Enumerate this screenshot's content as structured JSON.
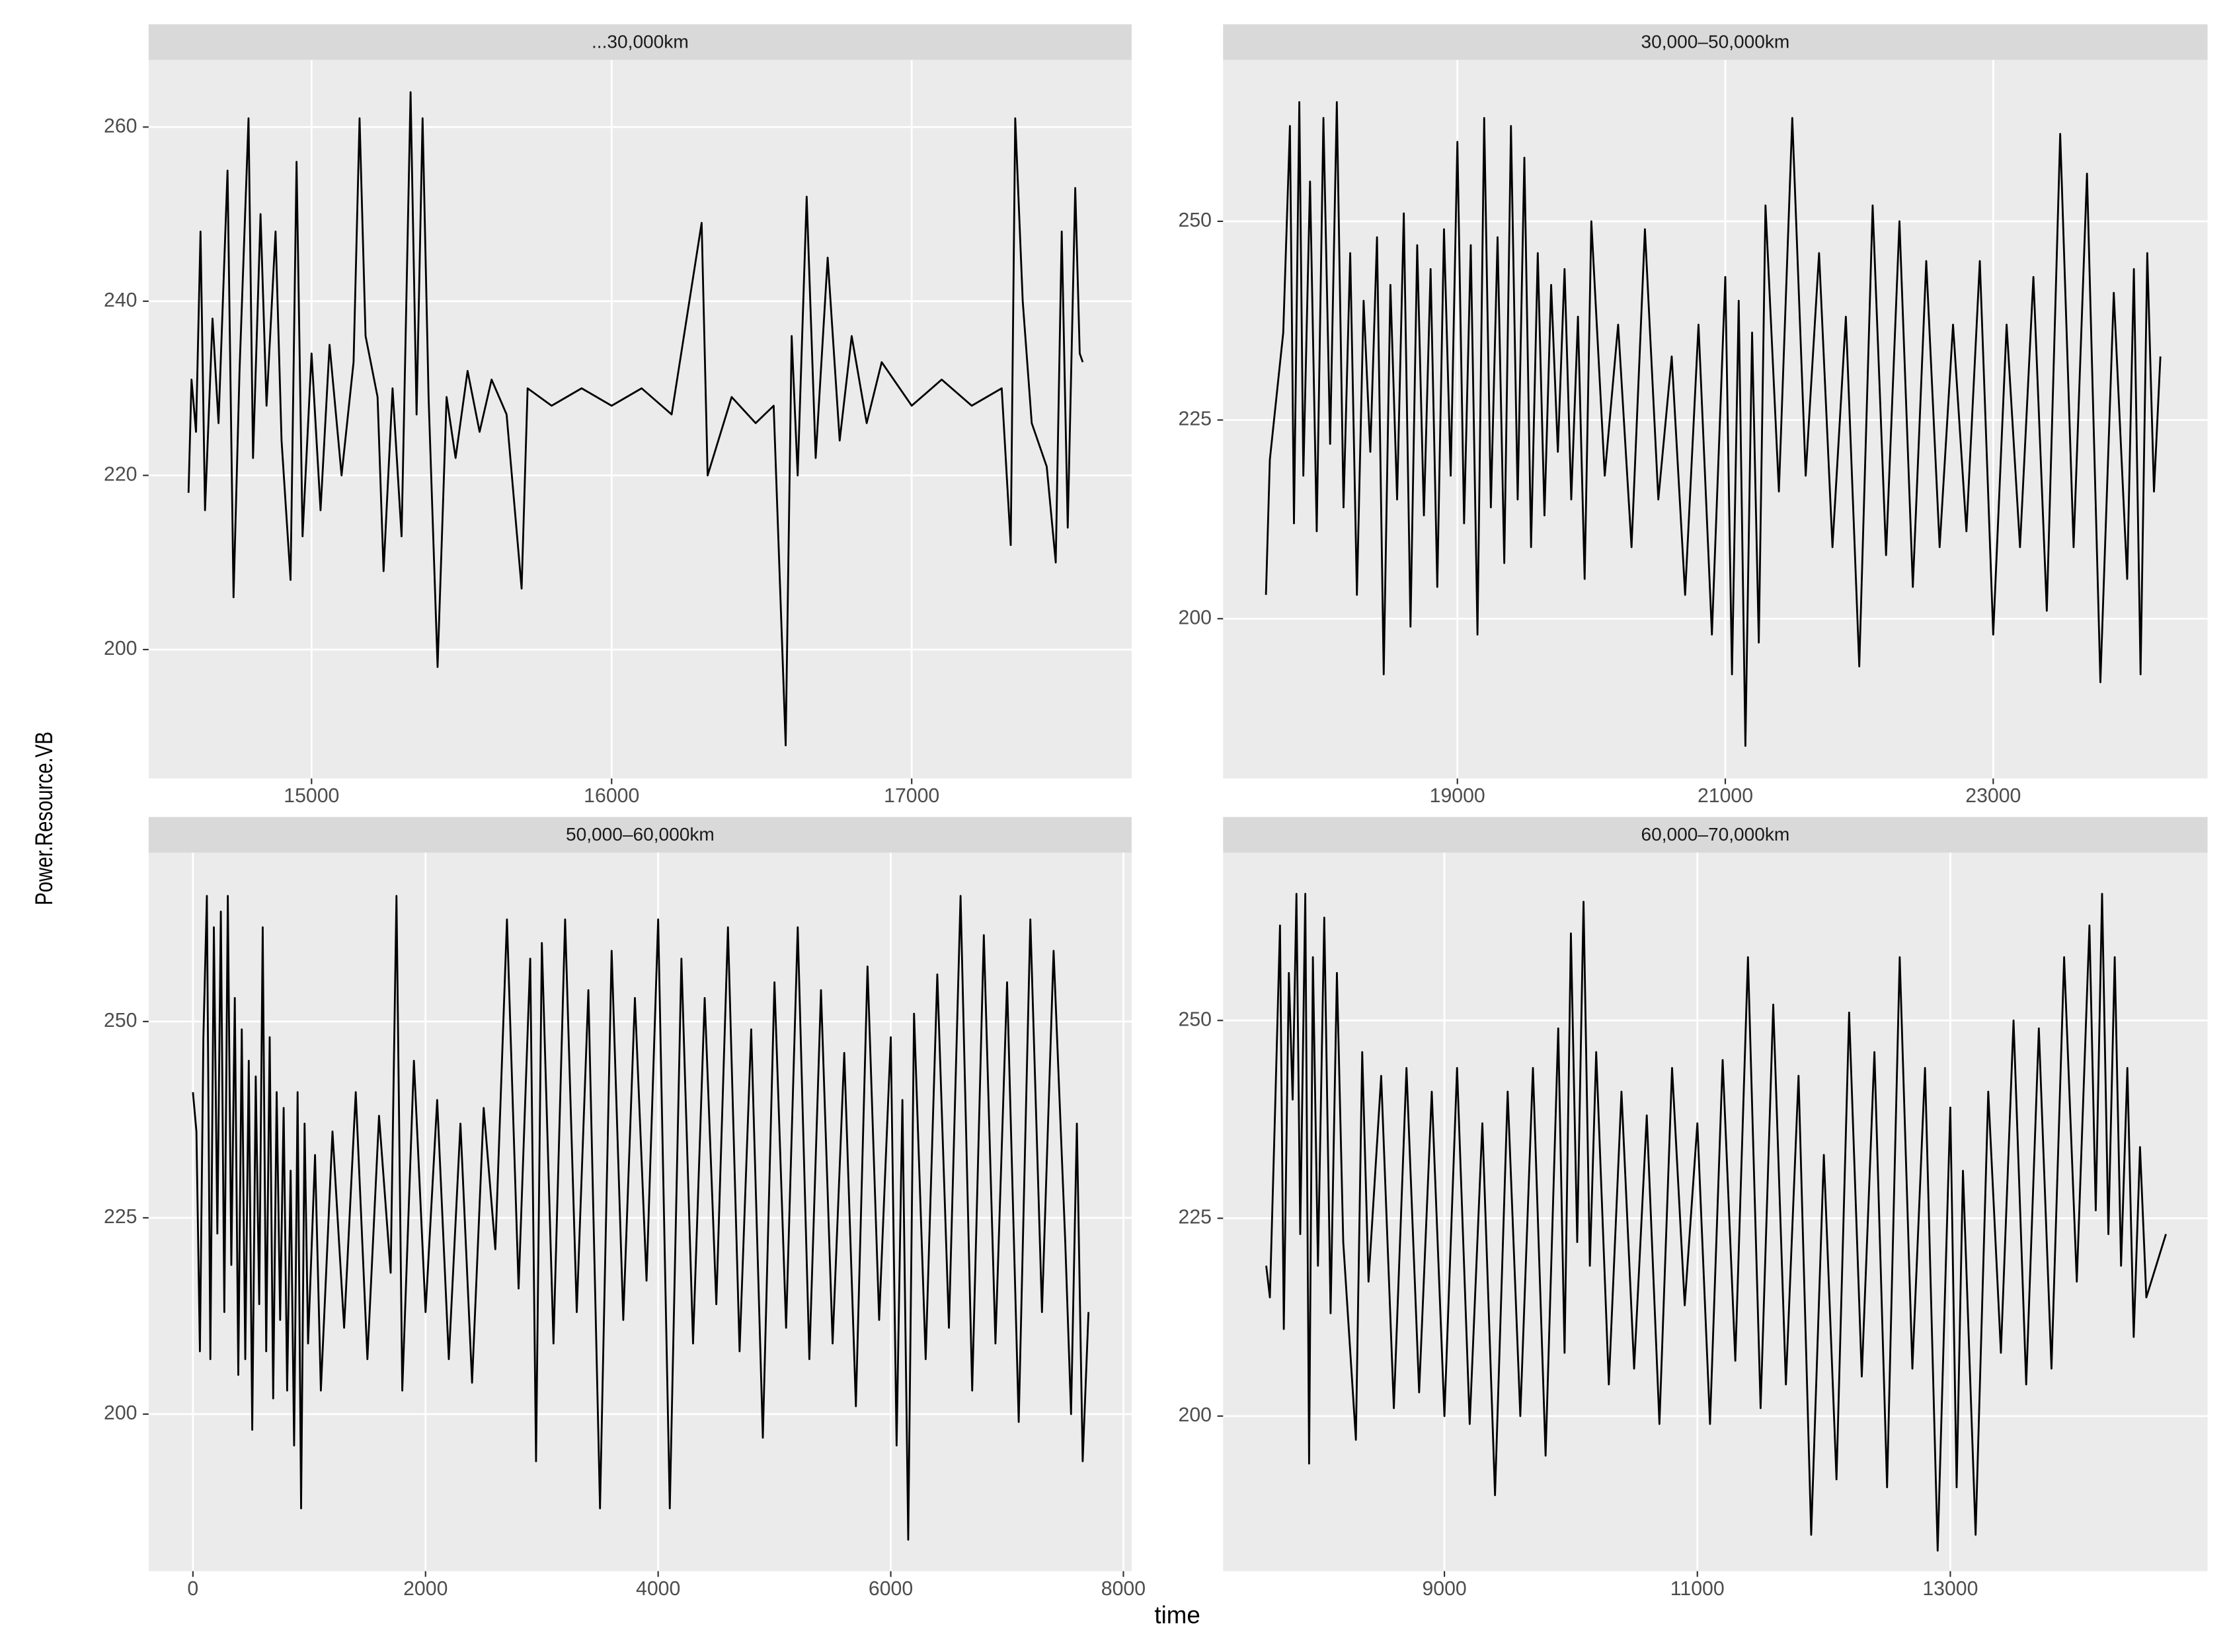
{
  "chart_data": {
    "type": "line",
    "xlabel": "time",
    "ylabel": "Power.Resource.VB",
    "color": "#000000",
    "grid": true,
    "facets": [
      {
        "title": "...30,000km",
        "x": [
          14590,
          14600,
          14615,
          14630,
          14645,
          14670,
          14690,
          14720,
          14740,
          14760,
          14790,
          14805,
          14830,
          14850,
          14880,
          14900,
          14930,
          14950,
          14970,
          15000,
          15030,
          15060,
          15100,
          15140,
          15160,
          15180,
          15220,
          15240,
          15270,
          15300,
          15330,
          15350,
          15370,
          15390,
          15420,
          15450,
          15480,
          15520,
          15560,
          15600,
          15650,
          15700,
          15720,
          15800,
          15900,
          16000,
          16100,
          16200,
          16300,
          16320,
          16400,
          16480,
          16540,
          16580,
          16600,
          16620,
          16650,
          16680,
          16720,
          16760,
          16800,
          16850,
          16900,
          17000,
          17100,
          17200,
          17300,
          17330,
          17345,
          17370,
          17400,
          17450,
          17480,
          17500,
          17520,
          17545,
          17560,
          17570
        ],
        "values": [
          218,
          231,
          225,
          248,
          216,
          238,
          226,
          255,
          206,
          232,
          261,
          222,
          250,
          228,
          248,
          224,
          208,
          256,
          213,
          234,
          216,
          235,
          220,
          233,
          261,
          236,
          229,
          209,
          230,
          213,
          264,
          227,
          261,
          229,
          198,
          229,
          222,
          232,
          225,
          231,
          227,
          207,
          230,
          228,
          230,
          228,
          230,
          227,
          249,
          220,
          229,
          226,
          228,
          189,
          236,
          220,
          252,
          222,
          245,
          224,
          236,
          226,
          233,
          228,
          231,
          228,
          230,
          212,
          261,
          240,
          226,
          221,
          210,
          248,
          214,
          253,
          234,
          233
        ],
        "xlim": [
          14457,
          17733
        ],
        "ylim": [
          185.2,
          267.7
        ],
        "xticks": [
          15000,
          16000,
          17000
        ],
        "yticks": [
          200,
          220,
          240,
          260
        ]
      },
      {
        "title": "30,000–50,000km",
        "x": [
          17571,
          17600,
          17650,
          17700,
          17750,
          17780,
          17820,
          17850,
          17900,
          17950,
          18000,
          18050,
          18100,
          18150,
          18200,
          18250,
          18300,
          18350,
          18400,
          18450,
          18500,
          18550,
          18600,
          18650,
          18700,
          18750,
          18800,
          18850,
          18900,
          18950,
          19000,
          19050,
          19100,
          19150,
          19200,
          19250,
          19300,
          19350,
          19400,
          19450,
          19500,
          19550,
          19600,
          19650,
          19700,
          19750,
          19800,
          19850,
          19900,
          19950,
          20000,
          20100,
          20200,
          20300,
          20400,
          20500,
          20600,
          20700,
          20800,
          20900,
          21000,
          21050,
          21100,
          21150,
          21200,
          21250,
          21300,
          21400,
          21500,
          21600,
          21700,
          21800,
          21900,
          22000,
          22100,
          22200,
          22300,
          22400,
          22500,
          22600,
          22700,
          22800,
          22900,
          23000,
          23100,
          23200,
          23300,
          23400,
          23500,
          23600,
          23700,
          23800,
          23900,
          24000,
          24050,
          24100,
          24150,
          24200,
          24248
        ],
        "values": [
          203,
          220,
          228,
          236,
          262,
          212,
          265,
          218,
          255,
          211,
          263,
          222,
          265,
          214,
          246,
          203,
          240,
          221,
          248,
          193,
          242,
          215,
          251,
          199,
          247,
          213,
          244,
          204,
          249,
          218,
          260,
          212,
          247,
          198,
          263,
          214,
          248,
          207,
          262,
          215,
          258,
          209,
          246,
          213,
          242,
          221,
          244,
          215,
          238,
          205,
          250,
          218,
          237,
          209,
          249,
          215,
          233,
          203,
          237,
          198,
          243,
          193,
          240,
          184,
          236,
          197,
          252,
          216,
          263,
          218,
          246,
          209,
          238,
          194,
          252,
          208,
          250,
          204,
          245,
          209,
          237,
          211,
          245,
          198,
          237,
          209,
          243,
          201,
          261,
          209,
          256,
          192,
          241,
          205,
          244,
          193,
          246,
          216,
          233
        ],
        "xlim": [
          17251,
          24600
        ],
        "ylim": [
          179.9,
          270.3
        ],
        "xticks": [
          19000,
          21000,
          23000
        ],
        "yticks": [
          200,
          225,
          250
        ]
      },
      {
        "title": "50,000–60,000km",
        "x": [
          0,
          30,
          60,
          90,
          120,
          150,
          180,
          210,
          240,
          270,
          300,
          330,
          360,
          390,
          420,
          450,
          480,
          510,
          540,
          570,
          600,
          630,
          660,
          690,
          720,
          750,
          780,
          810,
          840,
          870,
          900,
          930,
          960,
          990,
          1050,
          1100,
          1200,
          1300,
          1400,
          1500,
          1600,
          1700,
          1750,
          1800,
          1900,
          2000,
          2100,
          2200,
          2300,
          2400,
          2500,
          2600,
          2700,
          2800,
          2900,
          2950,
          3000,
          3100,
          3200,
          3300,
          3400,
          3500,
          3600,
          3700,
          3800,
          3900,
          4000,
          4100,
          4200,
          4300,
          4400,
          4500,
          4600,
          4700,
          4800,
          4900,
          5000,
          5100,
          5200,
          5300,
          5400,
          5500,
          5600,
          5700,
          5800,
          5900,
          6000,
          6050,
          6100,
          6150,
          6200,
          6300,
          6400,
          6500,
          6600,
          6700,
          6800,
          6900,
          7000,
          7100,
          7200,
          7300,
          7400,
          7500,
          7550,
          7600,
          7650,
          7700
        ],
        "values": [
          241,
          236,
          208,
          248,
          266,
          207,
          262,
          223,
          264,
          213,
          266,
          219,
          253,
          205,
          249,
          207,
          245,
          198,
          243,
          214,
          262,
          208,
          248,
          202,
          241,
          212,
          239,
          203,
          231,
          196,
          241,
          188,
          237,
          209,
          233,
          203,
          236,
          211,
          241,
          207,
          238,
          218,
          266,
          203,
          245,
          213,
          240,
          207,
          237,
          204,
          239,
          221,
          263,
          216,
          258,
          194,
          260,
          209,
          263,
          213,
          254,
          188,
          259,
          212,
          253,
          217,
          263,
          188,
          258,
          209,
          253,
          214,
          262,
          208,
          249,
          197,
          255,
          211,
          262,
          207,
          254,
          209,
          246,
          201,
          257,
          212,
          248,
          196,
          240,
          184,
          251,
          207,
          256,
          211,
          266,
          203,
          261,
          209,
          255,
          199,
          263,
          213,
          259,
          222,
          200,
          237,
          194,
          213
        ],
        "xlim": [
          -381,
          8071
        ],
        "ylim": [
          180,
          271.5
        ],
        "xticks": [
          0,
          2000,
          4000,
          6000,
          8000
        ],
        "yticks": [
          200,
          225,
          250
        ]
      },
      {
        "title": "60,000–70,000km",
        "x": [
          7591,
          7620,
          7660,
          7700,
          7730,
          7770,
          7800,
          7830,
          7860,
          7900,
          7930,
          7960,
          8000,
          8050,
          8100,
          8150,
          8200,
          8300,
          8350,
          8400,
          8500,
          8600,
          8700,
          8800,
          8900,
          9000,
          9100,
          9200,
          9300,
          9400,
          9500,
          9600,
          9700,
          9800,
          9900,
          9950,
          10000,
          10050,
          10100,
          10150,
          10200,
          10300,
          10400,
          10500,
          10600,
          10700,
          10800,
          10900,
          11000,
          11100,
          11200,
          11300,
          11400,
          11500,
          11600,
          11700,
          11800,
          11900,
          12000,
          12100,
          12200,
          12300,
          12400,
          12500,
          12600,
          12700,
          12800,
          12900,
          13000,
          13050,
          13100,
          13200,
          13300,
          13400,
          13500,
          13600,
          13700,
          13800,
          13900,
          14000,
          14100,
          14150,
          14200,
          14250,
          14300,
          14350,
          14400,
          14450,
          14500,
          14550,
          14705
        ],
        "values": [
          219,
          215,
          238,
          262,
          211,
          256,
          240,
          266,
          223,
          266,
          194,
          258,
          219,
          263,
          213,
          256,
          222,
          197,
          246,
          217,
          243,
          201,
          244,
          203,
          241,
          200,
          244,
          199,
          237,
          190,
          241,
          200,
          244,
          195,
          249,
          208,
          261,
          222,
          265,
          219,
          246,
          204,
          241,
          206,
          238,
          199,
          244,
          214,
          237,
          199,
          245,
          207,
          258,
          201,
          252,
          204,
          243,
          185,
          233,
          192,
          251,
          205,
          246,
          191,
          258,
          206,
          244,
          183,
          239,
          191,
          231,
          185,
          241,
          208,
          250,
          204,
          249,
          206,
          258,
          217,
          262,
          226,
          266,
          223,
          258,
          219,
          244,
          210,
          234,
          215,
          223
        ],
        "xlim": [
          7250,
          15034
        ],
        "ylim": [
          180.4,
          271.2
        ],
        "xticks": [
          9000,
          11000,
          13000
        ],
        "yticks": [
          200,
          225,
          250
        ]
      }
    ]
  }
}
